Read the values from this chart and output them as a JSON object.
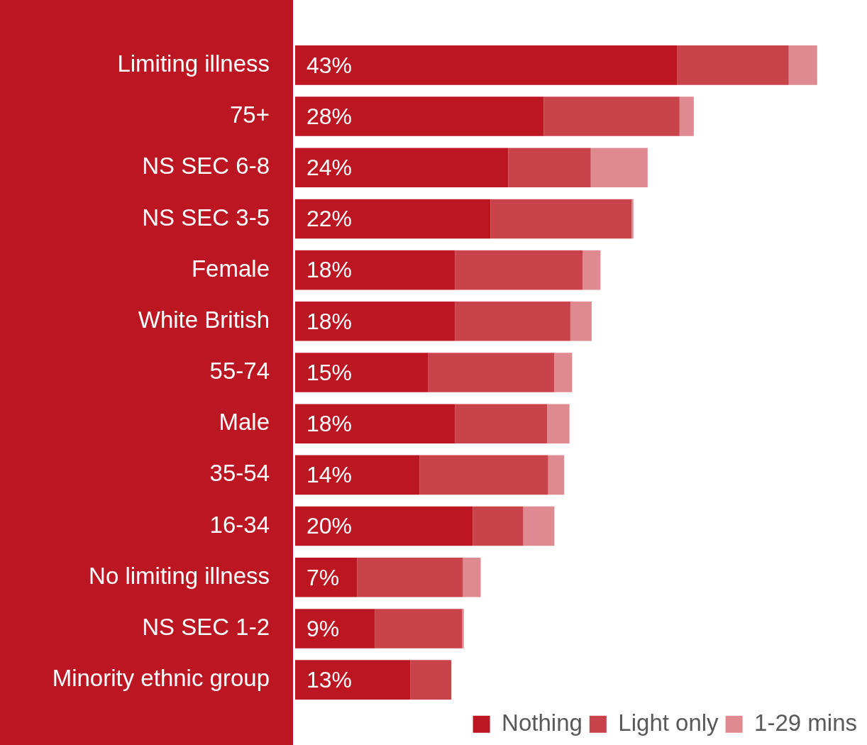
{
  "chart_data": {
    "type": "bar",
    "orientation": "horizontal",
    "stacked": true,
    "legend": "bottom right",
    "grid": false,
    "categories": [
      "Limiting illness",
      "75+",
      "NS SEC 6-8",
      "NS SEC 3-5",
      "Female",
      "White British",
      "55-74",
      "Male",
      "35-54",
      "16-34",
      "No limiting illness",
      "NS SEC 1-2",
      "Minority ethnic group"
    ],
    "series": [
      {
        "name": "Nothing",
        "color": "#bc1622",
        "values": [
          43,
          28,
          24,
          22,
          18,
          18,
          15,
          18,
          14,
          20,
          7,
          9,
          13
        ],
        "value_labels": [
          "43%",
          "28%",
          "24%",
          "22%",
          "18%",
          "18%",
          "15%",
          "18%",
          "14%",
          "20%",
          "7%",
          "9%",
          "13%"
        ]
      },
      {
        "name": "Light only",
        "color": "#c9434b",
        "values": [
          12.6,
          15.3,
          9.3,
          15.9,
          14.4,
          13.0,
          14.2,
          10.4,
          14.5,
          5.7,
          11.9,
          9.8,
          4.6
        ]
      },
      {
        "name": "1-29 mins",
        "color": "#df8a90",
        "values": [
          3.2,
          1.6,
          6.4,
          0.2,
          2.0,
          2.4,
          2.0,
          2.5,
          1.8,
          3.5,
          2.0,
          0.2,
          null
        ]
      }
    ]
  }
}
